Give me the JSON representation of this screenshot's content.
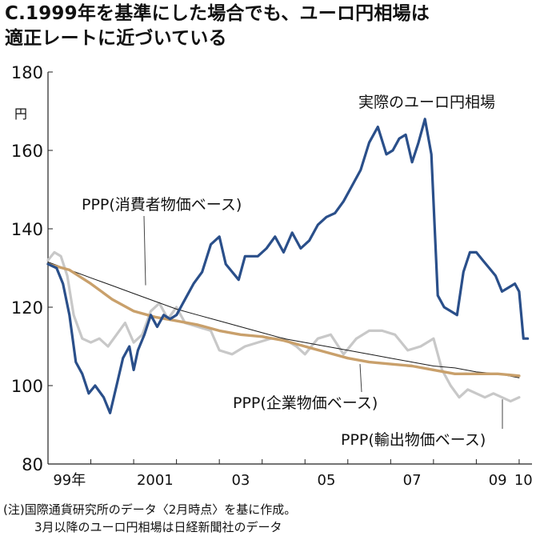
{
  "title_lines": [
    "C.1999年を基準にした場合でも、ユーロ円相場は",
    "適正レートに近づいている"
  ],
  "note_lines": [
    "(注)国際通貨研究所のデータ〈2月時点〉を基に作成。",
    "3月以降のユーロ円相場は日経新聞社のデータ"
  ],
  "chart_data": {
    "type": "line",
    "ylabel": "円",
    "ylim": [
      80,
      180
    ],
    "yticks": [
      80,
      100,
      120,
      140,
      160,
      180
    ],
    "xlim": [
      1999.0,
      2010.3
    ],
    "xticks": [
      {
        "label": "99年",
        "x": 1999.5
      },
      {
        "label": "2001",
        "x": 2001.5
      },
      {
        "label": "03",
        "x": 2003.5
      },
      {
        "label": "05",
        "x": 2005.5
      },
      {
        "label": "07",
        "x": 2007.5
      },
      {
        "label": "09",
        "x": 2009.5
      },
      {
        "label": "10",
        "x": 2010.1
      }
    ],
    "grid": false,
    "series": [
      {
        "name": "実際のユーロ円相場",
        "color": "#2a4f8a",
        "x": [
          1999.0,
          1999.2,
          1999.35,
          1999.5,
          1999.65,
          1999.8,
          1999.95,
          2000.1,
          2000.3,
          2000.45,
          2000.6,
          2000.75,
          2000.9,
          2001.0,
          2001.1,
          2001.25,
          2001.4,
          2001.55,
          2001.7,
          2001.85,
          2002.0,
          2002.2,
          2002.4,
          2002.6,
          2002.8,
          2003.0,
          2003.15,
          2003.3,
          2003.45,
          2003.6,
          2003.75,
          2003.9,
          2004.1,
          2004.3,
          2004.5,
          2004.7,
          2004.9,
          2005.1,
          2005.3,
          2005.5,
          2005.7,
          2005.9,
          2006.1,
          2006.3,
          2006.5,
          2006.7,
          2006.9,
          2007.05,
          2007.2,
          2007.35,
          2007.5,
          2007.65,
          2007.8,
          2007.95,
          2008.1,
          2008.25,
          2008.4,
          2008.55,
          2008.7,
          2008.85,
          2009.0,
          2009.15,
          2009.3,
          2009.45,
          2009.6,
          2009.75,
          2009.9,
          2010.0,
          2010.1,
          2010.2
        ],
        "values": [
          131,
          130,
          126,
          118,
          106,
          103,
          98,
          100,
          97,
          93,
          100,
          107,
          110,
          104,
          109,
          113,
          118,
          115,
          118,
          117,
          118,
          122,
          126,
          129,
          136,
          138,
          131,
          129,
          127,
          133,
          133,
          133,
          135,
          138,
          134,
          139,
          135,
          137,
          141,
          143,
          144,
          147,
          151,
          155,
          162,
          166,
          159,
          160,
          163,
          164,
          157,
          162,
          168,
          159,
          123,
          120,
          119,
          118,
          129,
          134,
          134,
          132,
          130,
          128,
          124,
          125,
          126,
          124,
          112,
          112
        ]
      },
      {
        "name": "PPP(消費者物価ベース)",
        "color": "#1a1a1a",
        "x": [
          1999.0,
          1999.5,
          2000.0,
          2000.5,
          2001.0,
          2001.5,
          2002.0,
          2002.5,
          2003.0,
          2003.5,
          2004.0,
          2004.5,
          2005.0,
          2005.5,
          2006.0,
          2006.5,
          2007.0,
          2007.5,
          2008.0,
          2008.5,
          2009.0,
          2009.5,
          2010.0
        ],
        "values": [
          131.5,
          129.5,
          127.5,
          125.5,
          123.5,
          121.5,
          119.5,
          118,
          116.5,
          115,
          113.5,
          112,
          111,
          110,
          109,
          108,
          107,
          106,
          105,
          104.5,
          103.5,
          103,
          102
        ]
      },
      {
        "name": "PPP(企業物価ベース)",
        "color": "#c9a06b",
        "x": [
          1999.0,
          1999.5,
          2000.0,
          2000.5,
          2001.0,
          2001.5,
          2002.0,
          2002.5,
          2003.0,
          2003.5,
          2004.0,
          2004.5,
          2005.0,
          2005.5,
          2006.0,
          2006.5,
          2007.0,
          2007.5,
          2008.0,
          2008.5,
          2009.0,
          2009.5,
          2010.0
        ],
        "values": [
          131,
          129.5,
          126,
          122,
          119,
          117.5,
          116.5,
          115.5,
          114,
          113,
          112.5,
          111.5,
          110,
          108.5,
          107,
          106,
          105.5,
          105,
          104,
          103,
          103,
          103,
          102.5
        ]
      },
      {
        "name": "PPP(輸出物価ベース)",
        "color": "#c8c8c8",
        "x": [
          1999.0,
          1999.15,
          1999.3,
          1999.45,
          1999.6,
          1999.8,
          2000.0,
          2000.2,
          2000.4,
          2000.6,
          2000.8,
          2001.0,
          2001.2,
          2001.4,
          2001.6,
          2001.8,
          2002.0,
          2002.2,
          2002.5,
          2002.8,
          2003.0,
          2003.3,
          2003.6,
          2003.9,
          2004.2,
          2004.5,
          2004.8,
          2005.0,
          2005.3,
          2005.6,
          2005.9,
          2006.2,
          2006.5,
          2006.8,
          2007.1,
          2007.4,
          2007.7,
          2008.0,
          2008.2,
          2008.4,
          2008.6,
          2008.8,
          2009.0,
          2009.2,
          2009.4,
          2009.6,
          2009.8,
          2010.0
        ],
        "values": [
          132,
          134,
          133,
          128,
          118,
          112,
          111,
          112,
          110,
          113,
          116,
          111,
          113,
          119,
          121,
          117,
          120,
          116,
          115,
          114,
          109,
          108,
          110,
          111,
          112,
          112,
          110,
          108,
          112,
          113,
          108,
          112,
          114,
          114,
          113,
          109,
          110,
          112,
          104,
          100,
          97,
          99,
          98,
          97,
          98,
          97,
          96,
          97
        ]
      }
    ],
    "annotations": [
      "実際のユーロ円相場",
      "PPP(消費者物価ベース)",
      "PPP(企業物価ベース)",
      "PPP(輸出物価ベース)"
    ]
  }
}
